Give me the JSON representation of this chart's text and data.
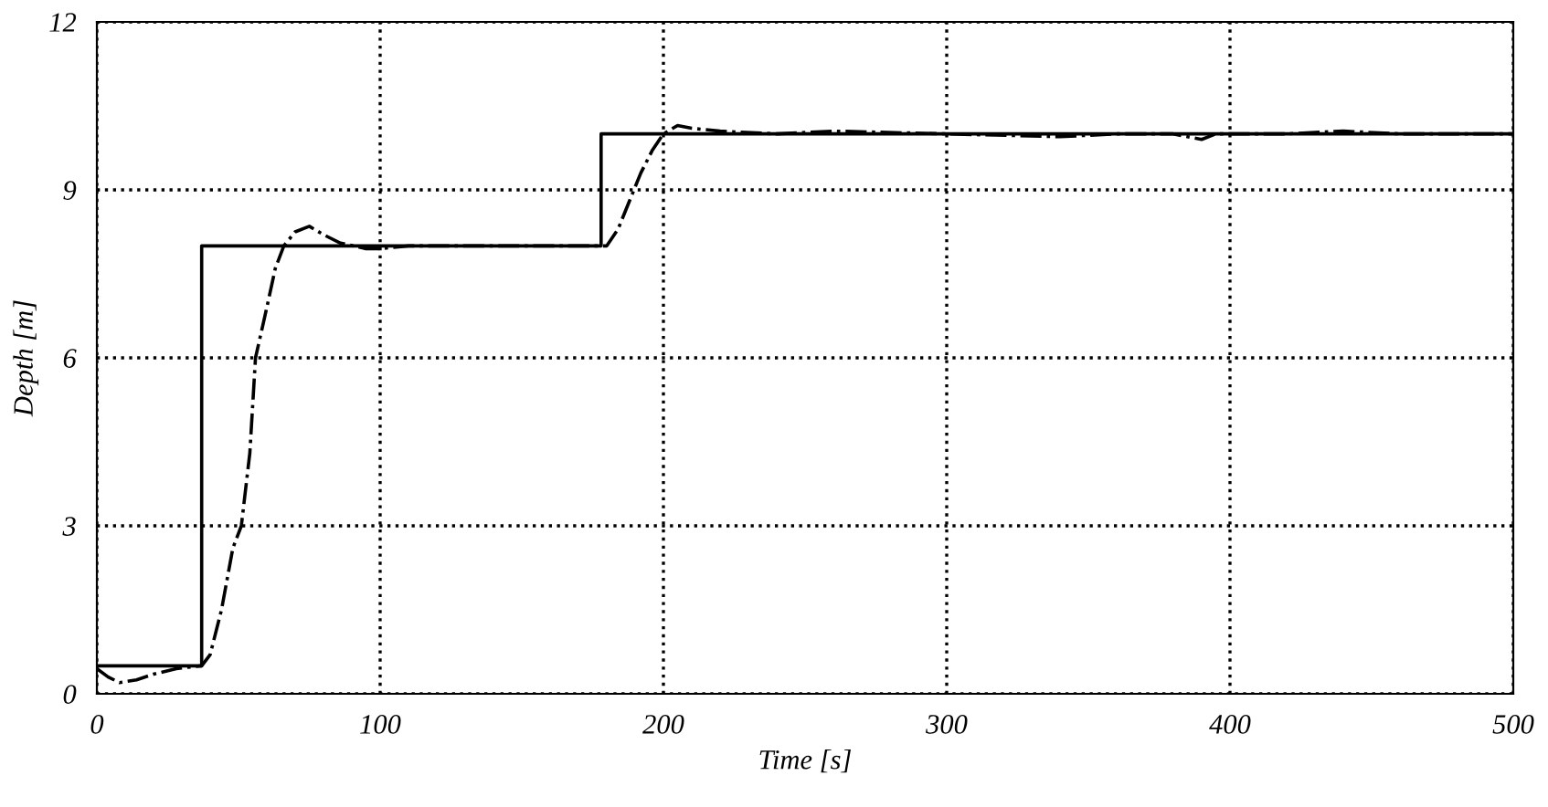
{
  "chart_data": {
    "type": "line",
    "xlabel": "Time [s]",
    "ylabel": "Depth [m]",
    "xlim": [
      0,
      500
    ],
    "ylim": [
      0,
      12
    ],
    "xticks": [
      0,
      100,
      200,
      300,
      400,
      500
    ],
    "yticks": [
      0,
      3,
      6,
      9,
      12
    ],
    "grid": true,
    "series": [
      {
        "color": "#000000",
        "line_style": "solid",
        "type": "step",
        "x": [
          0,
          37,
          37,
          178,
          178,
          500
        ],
        "values": [
          0.5,
          0.5,
          8,
          8,
          10,
          10
        ]
      },
      {
        "color": "#000000",
        "line_style": "dashdot",
        "x": [
          0,
          4,
          8,
          14,
          20,
          28,
          37,
          40,
          44,
          48,
          51,
          54,
          56,
          60,
          63,
          66,
          70,
          75,
          80,
          86,
          95,
          100,
          110,
          130,
          150,
          170,
          180,
          184,
          188,
          192,
          196,
          200,
          205,
          210,
          220,
          240,
          260,
          300,
          340,
          360,
          380,
          390,
          395,
          420,
          440,
          460,
          480,
          500
        ],
        "values": [
          0.45,
          0.3,
          0.2,
          0.25,
          0.35,
          0.45,
          0.5,
          0.7,
          1.5,
          2.6,
          3.0,
          4.3,
          6.0,
          6.9,
          7.6,
          8.0,
          8.25,
          8.35,
          8.2,
          8.05,
          7.95,
          7.95,
          8.0,
          8.0,
          8.0,
          8.0,
          8.0,
          8.3,
          8.8,
          9.3,
          9.7,
          10.0,
          10.15,
          10.1,
          10.05,
          10.0,
          10.05,
          10.0,
          9.95,
          10.0,
          10.0,
          9.9,
          10.0,
          10.0,
          10.05,
          10.0,
          10.0,
          10.0
        ]
      }
    ]
  }
}
